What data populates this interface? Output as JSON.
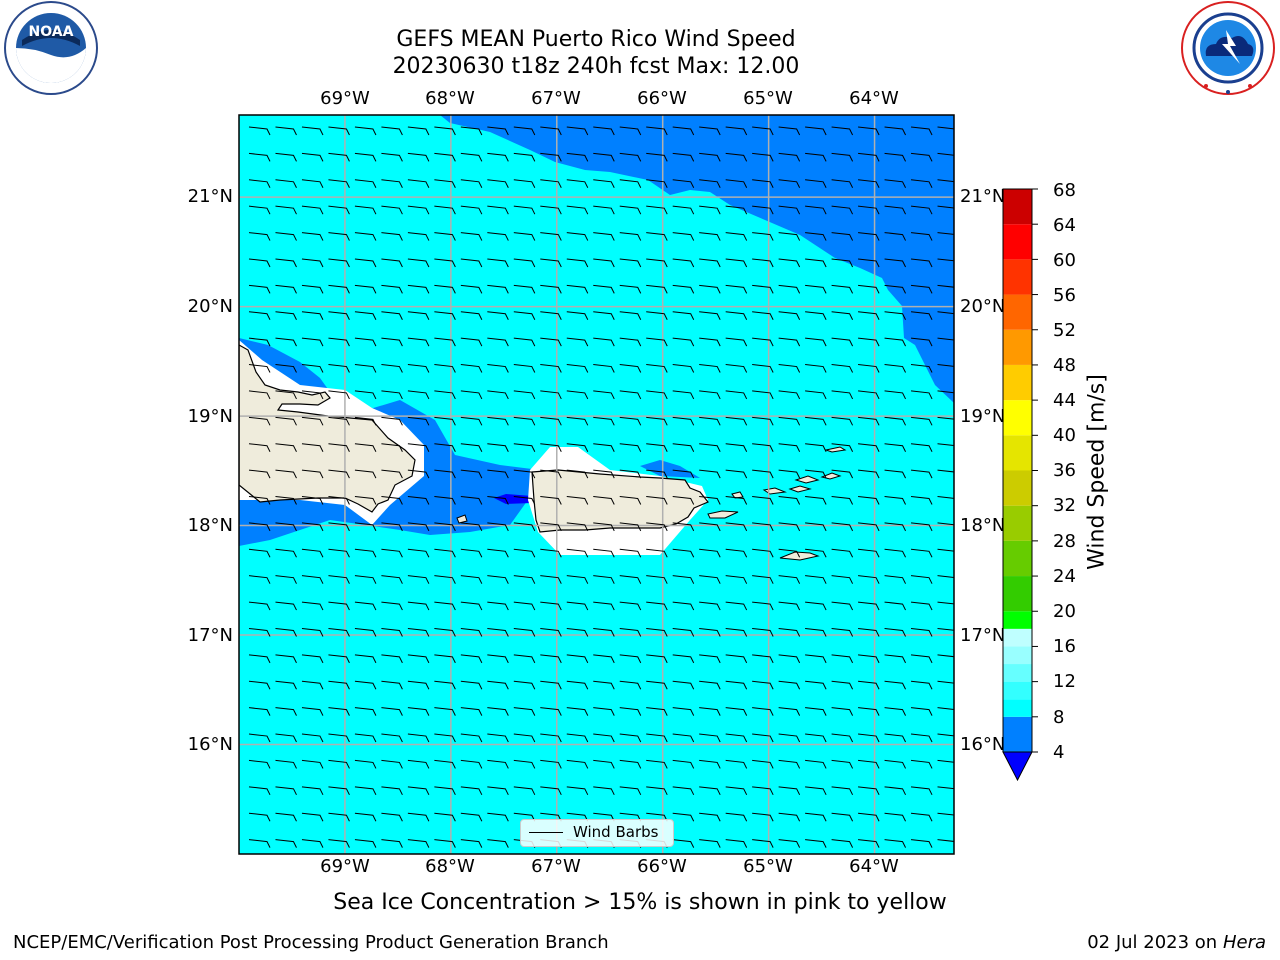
{
  "title": {
    "line1": "GEFS MEAN Puerto Rico Wind Speed",
    "line2": "20230630 t18z 240h fcst   Max: 12.00"
  },
  "logos": {
    "left": {
      "icon": "noaa-logo-icon",
      "text": "NOAA",
      "ring_text": "NATIONAL OCEANIC AND ATMOSPHERIC ADMINISTRATION - U.S. DEPARTMENT OF COMMERCE"
    },
    "right": {
      "icon": "nws-logo-icon",
      "ring_text": "NATIONAL WEATHER SERVICE"
    }
  },
  "map": {
    "lon_range": [
      -70.0,
      -63.25
    ],
    "lat_range": [
      15.0,
      21.75
    ],
    "lon_labels": [
      "69°W",
      "68°W",
      "67°W",
      "66°W",
      "65°W",
      "64°W"
    ],
    "lat_labels": [
      "21°N",
      "20°N",
      "19°N",
      "18°N",
      "17°N",
      "16°N"
    ],
    "grid": true,
    "land_color": "#efecdc",
    "coast_color": "#000000",
    "barb_direction": "easterly",
    "legend": {
      "label": "Wind Barbs",
      "placement": "bottom-center"
    }
  },
  "colorbar": {
    "label": "Wind Speed [m/s]",
    "ticks": [
      "68",
      "64",
      "60",
      "56",
      "52",
      "48",
      "44",
      "40",
      "36",
      "32",
      "28",
      "24",
      "20",
      "16",
      "12",
      "8",
      "4"
    ],
    "levels": [
      4,
      8,
      10,
      12,
      14,
      16,
      18,
      20,
      24,
      28,
      32,
      36,
      40,
      44,
      48,
      52,
      56,
      60,
      64,
      68
    ],
    "colors": [
      "#0080ff",
      "#00ffff",
      "#33ffff",
      "#66ffff",
      "#99ffff",
      "#bfffff",
      "#00ff00",
      "#33cc00",
      "#66cc00",
      "#99cc00",
      "#cccc00",
      "#e5e500",
      "#ffff00",
      "#ffcc00",
      "#ff9900",
      "#ff6600",
      "#ff3300",
      "#ff0000",
      "#cc0000"
    ],
    "under_color": "#0000ff"
  },
  "note": "Sea Ice Concentration > 15% is shown in pink to yellow",
  "footer": {
    "left": "NCEP/EMC/Verification Post Processing Product Generation Branch",
    "date": "02 Jul 2023 on",
    "machine": "Hera"
  }
}
